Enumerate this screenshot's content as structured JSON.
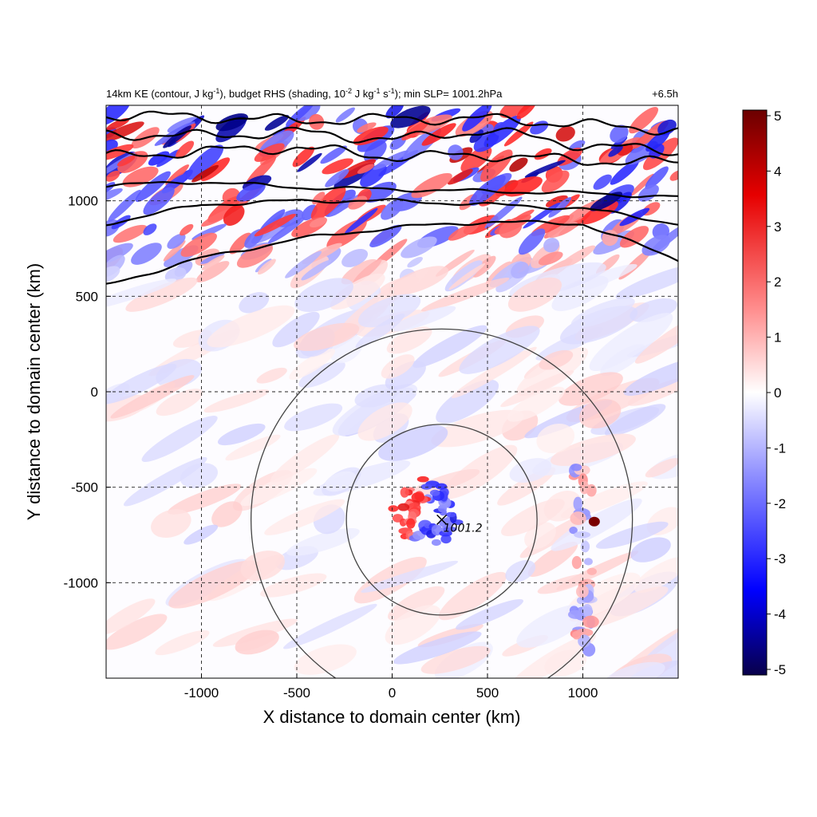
{
  "chart_data": {
    "type": "heatmap",
    "title": {
      "left_segments": [
        {
          "text": "14km KE (contour, J kg",
          "sup": false
        },
        {
          "text": "-1",
          "sup": true
        },
        {
          "text": "), budget RHS (shading, 10",
          "sup": false
        },
        {
          "text": "-2",
          "sup": true
        },
        {
          "text": " J kg",
          "sup": false
        },
        {
          "text": "-1",
          "sup": true
        },
        {
          "text": " s",
          "sup": false
        },
        {
          "text": "-1",
          "sup": true
        },
        {
          "text": "); min SLP= 1001.2hPa",
          "sup": false
        }
      ],
      "right": "+6.5h"
    },
    "xlabel": "X distance to domain center (km)",
    "ylabel": "Y distance to domain center (km)",
    "xlim": [
      -1500,
      1500
    ],
    "ylim": [
      -1500,
      1500
    ],
    "xticks": [
      -1000,
      -500,
      0,
      500,
      1000
    ],
    "yticks": [
      1000,
      500,
      0,
      -500,
      -1000
    ],
    "grid": true,
    "colorbar": {
      "min": -5,
      "max": 5,
      "ticks": [
        5,
        4,
        3,
        2,
        1,
        0,
        -1,
        -2,
        -3,
        -4,
        -5
      ],
      "colormap": [
        "#08004a",
        "#0000ff",
        "#8c8cff",
        "#ffffff",
        "#ff8c8c",
        "#e60000",
        "#6b0000"
      ]
    },
    "center_marker": {
      "x": 260,
      "y": -670,
      "label": "1001.2"
    },
    "range_circles_km": [
      500,
      1000
    ],
    "ke_contours_y_at_x": [
      {
        "x": [
          -1500,
          -1000,
          -500,
          0,
          500,
          1000,
          1500
        ],
        "y": [
          560,
          700,
          800,
          860,
          890,
          880,
          690
        ]
      },
      {
        "x": [
          -1500,
          -1000,
          -500,
          0,
          500,
          1000,
          1500
        ],
        "y": [
          880,
          980,
          1000,
          1000,
          980,
          960,
          880
        ]
      },
      {
        "x": [
          -1500,
          -1000,
          -500,
          0,
          500,
          1000,
          1500
        ],
        "y": [
          1080,
          1100,
          1070,
          1060,
          1050,
          1040,
          1020
        ]
      },
      {
        "x": [
          -1500,
          -1000,
          -500,
          0,
          500,
          1000,
          1500
        ],
        "y": [
          1230,
          1260,
          1280,
          1230,
          1240,
          1210,
          1200
        ]
      },
      {
        "x": [
          -1500,
          -1000,
          -500,
          0,
          500,
          1000,
          1500
        ],
        "y": [
          1350,
          1340,
          1360,
          1320,
          1370,
          1290,
          1260
        ]
      },
      {
        "x": [
          -1500,
          -1000,
          -500,
          0,
          500,
          1000,
          1500
        ],
        "y": [
          1450,
          1440,
          1420,
          1430,
          1430,
          1400,
          1370
        ]
      }
    ]
  }
}
